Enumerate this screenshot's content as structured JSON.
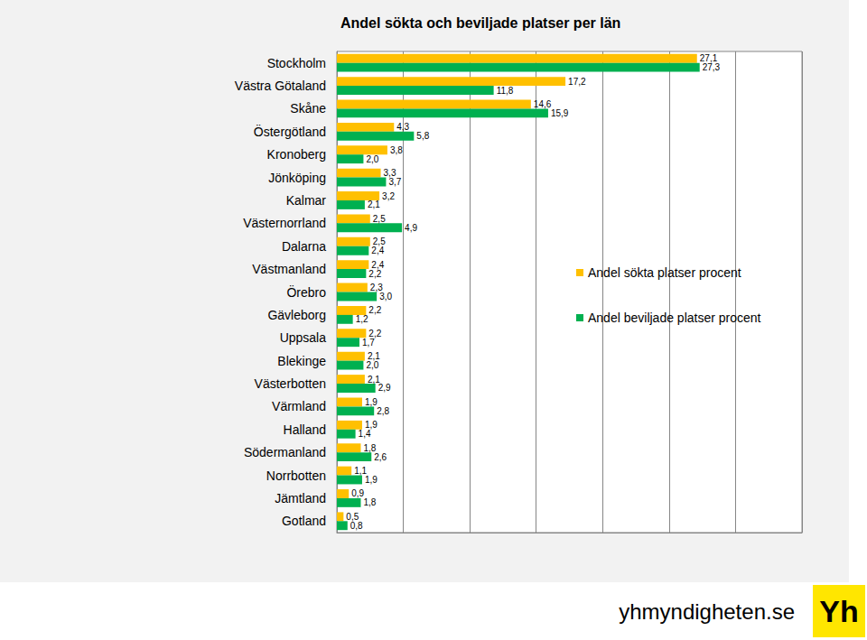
{
  "chart_data": {
    "type": "bar",
    "title": "Andel sökta och beviljade platser per län",
    "orientation": "horizontal",
    "categories": [
      "Stockholm",
      "Västra Götaland",
      "Skåne",
      "Östergötland",
      "Kronoberg",
      "Jönköping",
      "Kalmar",
      "Västernorrland",
      "Dalarna",
      "Västmanland",
      "Örebro",
      "Gävleborg",
      "Uppsala",
      "Blekinge",
      "Västerbotten",
      "Värmland",
      "Halland",
      "Södermanland",
      "Norrbotten",
      "Jämtland",
      "Gotland"
    ],
    "series": [
      {
        "name": "Andel sökta platser procent",
        "color": "#ffc000",
        "values": [
          27.1,
          17.2,
          14.6,
          4.3,
          3.8,
          3.3,
          3.2,
          2.5,
          2.5,
          2.4,
          2.3,
          2.2,
          2.2,
          2.1,
          2.1,
          1.9,
          1.9,
          1.8,
          1.1,
          0.9,
          0.5
        ],
        "value_labels": [
          "27,1",
          "17,2",
          "14,6",
          "4,3",
          "3,8",
          "3,3",
          "3,2",
          "2,5",
          "2,5",
          "2,4",
          "2,3",
          "2,2",
          "2,2",
          "2,1",
          "2,1",
          "1,9",
          "1,9",
          "1,8",
          "1,1",
          "0,9",
          "0,5"
        ]
      },
      {
        "name": "Andel beviljade platser procent",
        "color": "#00b050",
        "values": [
          27.3,
          11.8,
          15.9,
          5.8,
          2.0,
          3.7,
          2.1,
          4.9,
          2.4,
          2.2,
          3.0,
          1.2,
          1.7,
          2.0,
          2.9,
          2.8,
          1.4,
          2.6,
          1.9,
          1.8,
          0.8
        ],
        "value_labels": [
          "27,3",
          "11,8",
          "15,9",
          "5,8",
          "2,0",
          "3,7",
          "2,1",
          "4,9",
          "2,4",
          "2,2",
          "3,0",
          "1,2",
          "1,7",
          "2,0",
          "2,9",
          "2,8",
          "1,4",
          "2,6",
          "1,9",
          "1,8",
          "0,8"
        ]
      }
    ],
    "xlim": [
      0,
      35
    ],
    "xticks": [
      0,
      5,
      10,
      15,
      20,
      25,
      30,
      35
    ],
    "grid": true,
    "legend": "right",
    "data_labels": true,
    "tick_labels": "y"
  },
  "footer": {
    "site": "yhmyndigheten.se",
    "logo": "Yh"
  }
}
